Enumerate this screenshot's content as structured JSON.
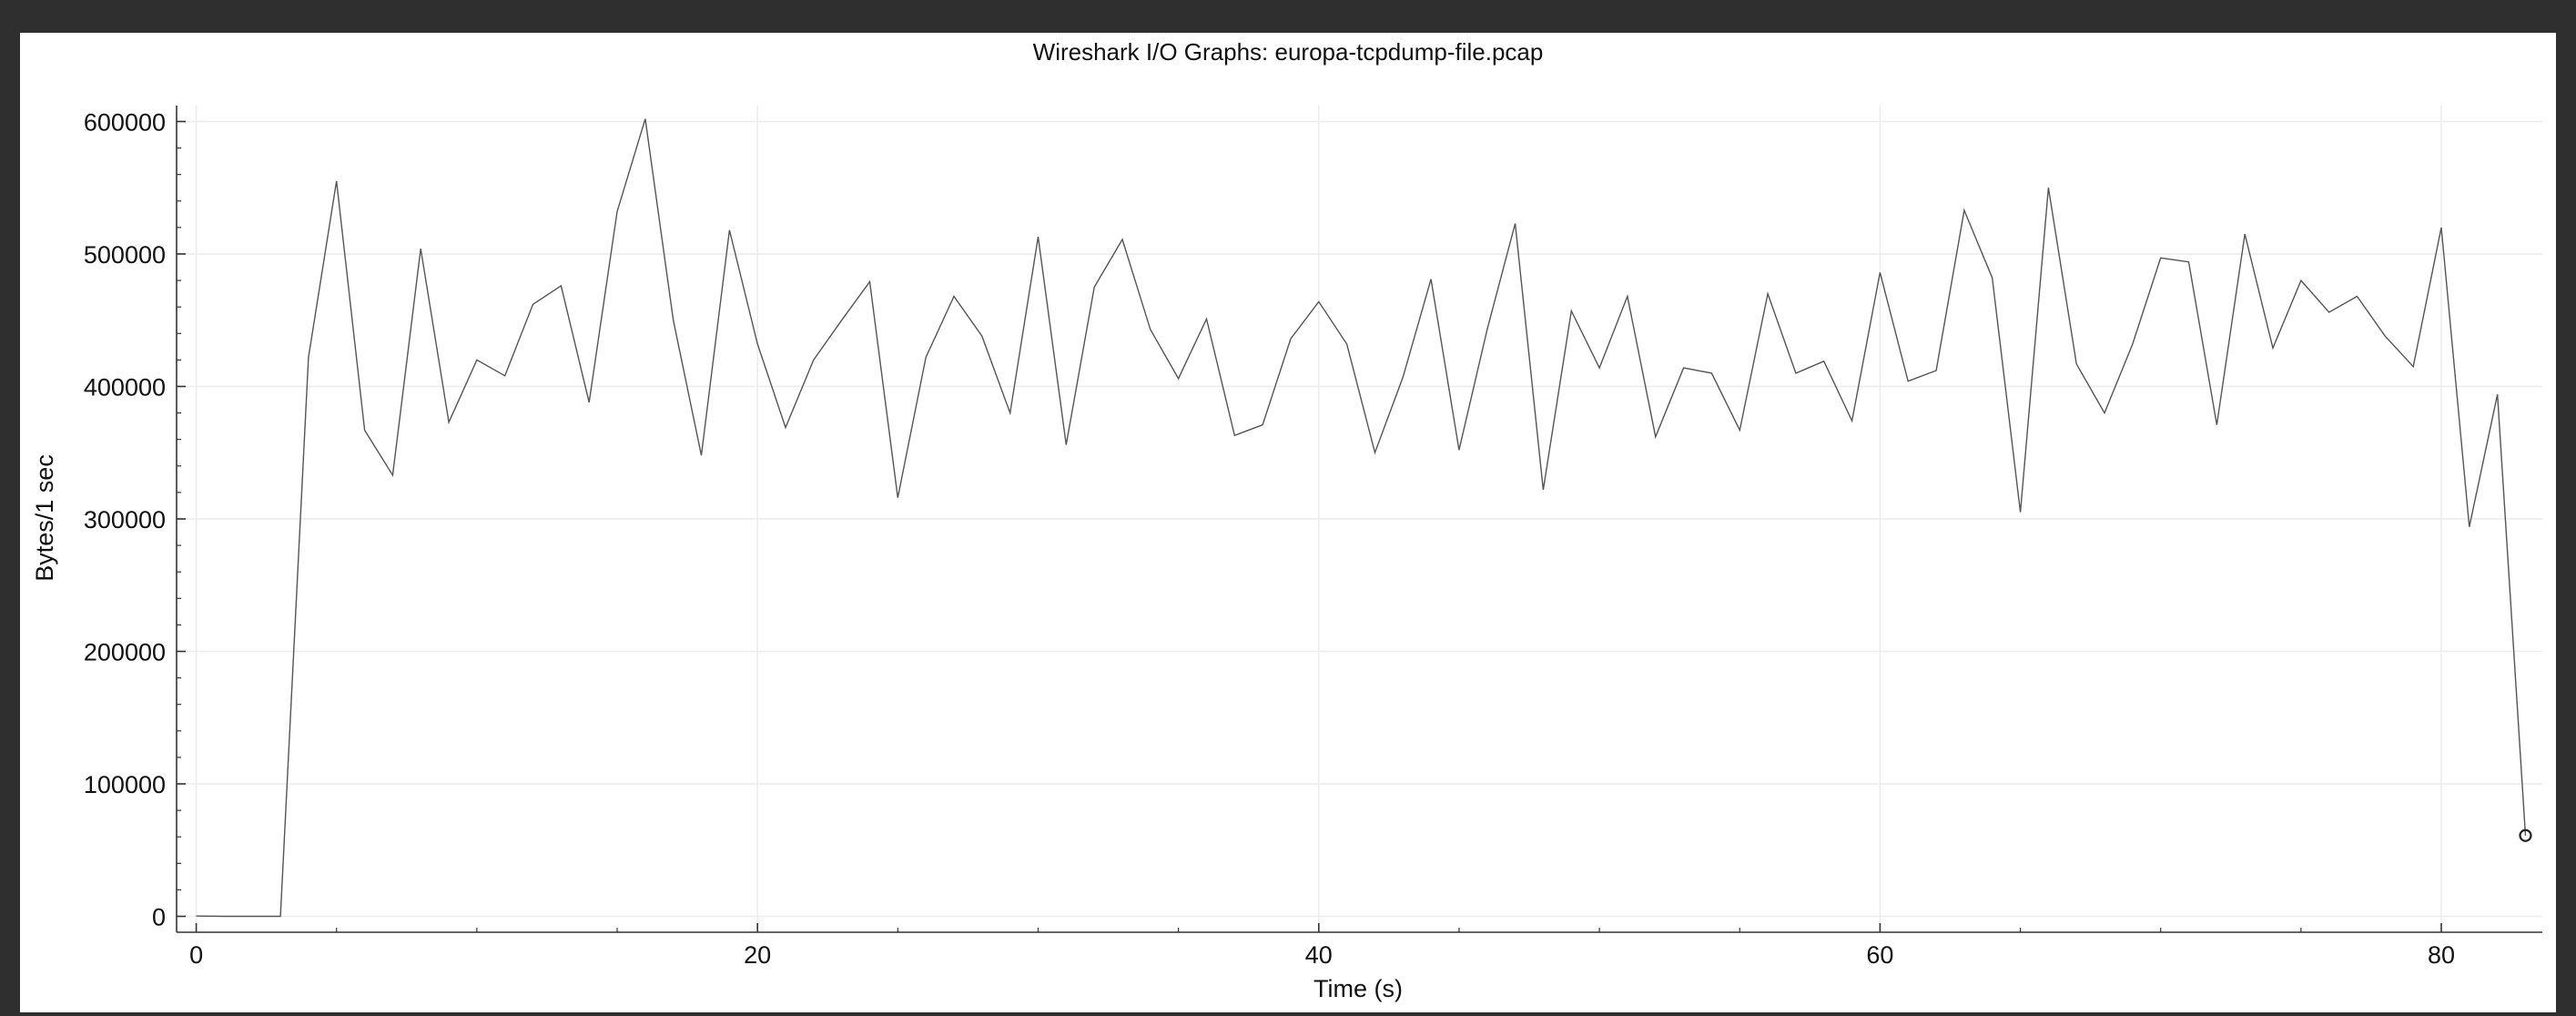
{
  "window": {
    "title": "Wireshark I/O Graphs: europa-tcpdump-file.pcap"
  },
  "chart_data": {
    "type": "line",
    "title": "Wireshark I/O Graphs: europa-tcpdump-file.pcap",
    "xlabel": "Time (s)",
    "ylabel": "Bytes/1 sec",
    "xlim": [
      -0.7,
      83.6
    ],
    "ylim": [
      -12000,
      612000
    ],
    "x_ticks": [
      0,
      20,
      40,
      60,
      80
    ],
    "y_ticks": [
      0,
      100000,
      200000,
      300000,
      400000,
      500000,
      600000
    ],
    "grid": true,
    "series": [
      {
        "color": "#555555",
        "x": [
          0,
          1,
          2,
          3,
          4,
          5,
          6,
          7,
          8,
          9,
          10,
          11,
          12,
          13,
          14,
          15,
          16,
          17,
          18,
          19,
          20,
          21,
          22,
          23,
          24,
          25,
          26,
          27,
          28,
          29,
          30,
          31,
          32,
          33,
          34,
          35,
          36,
          37,
          38,
          39,
          40,
          41,
          42,
          43,
          44,
          45,
          46,
          47,
          48,
          49,
          50,
          51,
          52,
          53,
          54,
          55,
          56,
          57,
          58,
          59,
          60,
          61,
          62,
          63,
          64,
          65,
          66,
          67,
          68,
          69,
          70,
          71,
          72,
          73,
          74,
          75,
          76,
          77,
          78,
          79,
          80,
          81,
          82,
          83
        ],
        "values": [
          200,
          0,
          0,
          0,
          422000,
          555000,
          367000,
          333000,
          504000,
          373000,
          420000,
          408000,
          462000,
          476000,
          388000,
          532000,
          602000,
          450000,
          348000,
          518000,
          432000,
          369000,
          420000,
          450000,
          479000,
          316000,
          422000,
          468000,
          438000,
          380000,
          513000,
          356000,
          475000,
          511000,
          443000,
          406000,
          451000,
          363000,
          371000,
          436000,
          464000,
          432000,
          350000,
          407000,
          481000,
          352000,
          443000,
          523000,
          322000,
          457000,
          414000,
          468000,
          362000,
          414000,
          410000,
          367000,
          470000,
          410000,
          419000,
          374000,
          486000,
          404000,
          412000,
          533000,
          482000,
          305000,
          550000,
          417000,
          380000,
          432000,
          497000,
          494000,
          371000,
          515000,
          429000,
          480000,
          456000,
          468000,
          438000,
          415000,
          520000,
          294000,
          394000,
          61000
        ],
        "end_marker": "circle"
      }
    ]
  }
}
